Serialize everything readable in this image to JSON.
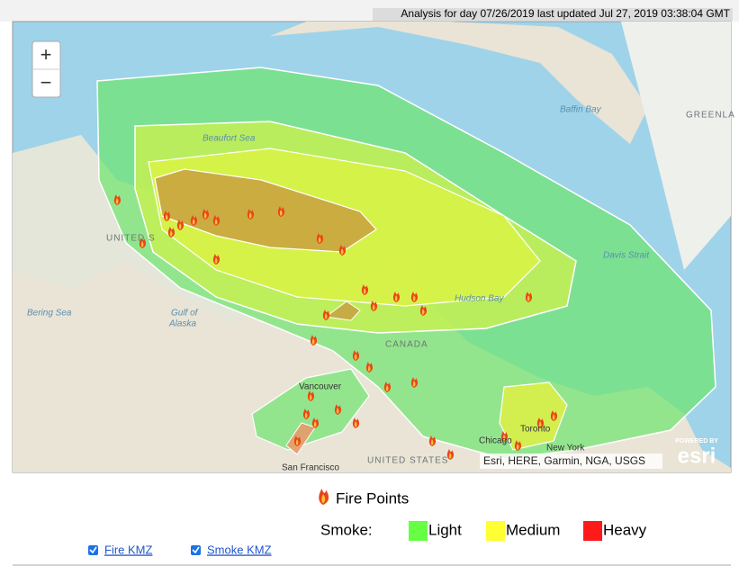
{
  "header": {
    "status": "Analysis for day 07/26/2019 last updated Jul 27, 2019 03:38:04 GMT"
  },
  "map": {
    "zoom_in": "+",
    "zoom_out": "−",
    "labels": [
      "Beaufort Sea",
      "Baffin Bay",
      "GREENLA",
      "UNITED S",
      "Davis Strait",
      "Bering Sea",
      "Gulf of",
      "Alaska",
      "Hudson Bay",
      "CANADA",
      "Vancouver",
      "Toronto",
      "New York",
      "Chicago",
      "San Francisco",
      "UNITED STATES"
    ],
    "attribution": "Esri, HERE, Garmin, NGA, USGS",
    "powered_by": "POWERED BY",
    "logo": "esri"
  },
  "legend": {
    "fire": "Fire Points",
    "smoke": "Smoke:",
    "light": "Light",
    "medium": "Medium",
    "heavy": "Heavy"
  },
  "options": [
    "Fire KMZ",
    "Smoke KMZ"
  ]
}
